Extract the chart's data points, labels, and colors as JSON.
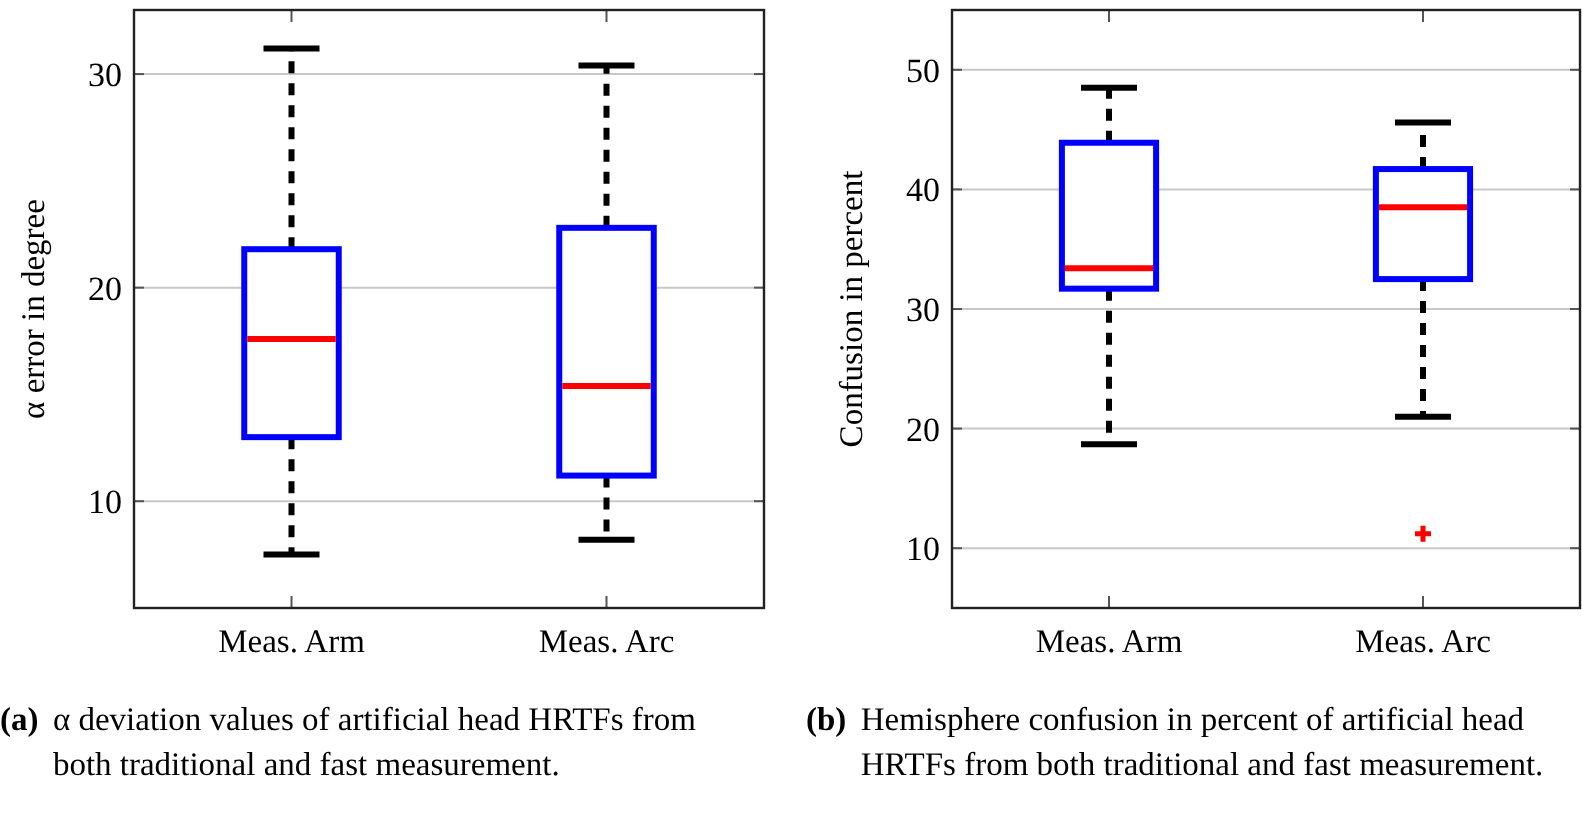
{
  "chart_data": [
    {
      "type": "box",
      "categories": [
        "Meas. Arm",
        "Meas. Arc"
      ],
      "ylabel": "α error in degree",
      "ylim": [
        5,
        33
      ],
      "yticks": [
        10,
        20,
        30
      ],
      "grid": "y",
      "series": [
        {
          "color": "#0000ff",
          "boxes": [
            {
              "low": 7.5,
              "q1": 13.0,
              "median": 17.6,
              "q3": 21.8,
              "high": 31.2
            },
            {
              "low": 8.2,
              "q1": 11.2,
              "median": 15.4,
              "q3": 22.8,
              "high": 30.4
            }
          ]
        }
      ],
      "annotations": [
        "(a) α deviation values of artificial head HRTFs from both traditional and fast measurement."
      ]
    },
    {
      "type": "box",
      "categories": [
        "Meas. Arm",
        "Meas. Arc"
      ],
      "ylabel": "Confusion in percent",
      "ylim": [
        5,
        55
      ],
      "yticks": [
        10,
        20,
        30,
        40,
        50
      ],
      "grid": "y",
      "series": [
        {
          "color": "#0000ff",
          "boxes": [
            {
              "low": 18.7,
              "q1": 31.7,
              "median": 33.4,
              "q3": 43.9,
              "high": 48.5
            },
            {
              "low": 21.0,
              "q1": 32.5,
              "median": 38.5,
              "q3": 41.7,
              "high": 45.6,
              "outliers": [
                11.2
              ]
            }
          ]
        }
      ],
      "annotations": [
        "(b) Hemisphere confusion in percent of artificial head HRTFs from both traditional and fast measurement."
      ]
    }
  ]
}
